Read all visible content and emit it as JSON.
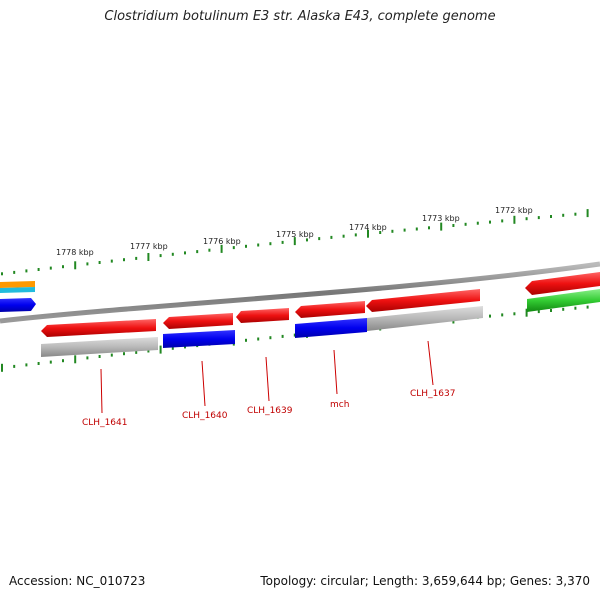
{
  "title": "Clostridium botulinum E3 str. Alaska E43, complete genome",
  "footer": {
    "accession": "Accession: NC_010723",
    "summary": "Topology: circular; Length: 3,659,644 bp; Genes: 3,370"
  },
  "ticks": [
    "1778 kbp",
    "1777 kbp",
    "1776 kbp",
    "1775 kbp",
    "1774 kbp",
    "1773 kbp",
    "1772 kbp"
  ],
  "genes": [
    {
      "name": "CLH_1641"
    },
    {
      "name": "CLH_1640"
    },
    {
      "name": "CLH_1639"
    },
    {
      "name": "mch"
    },
    {
      "name": "CLH_1637"
    }
  ],
  "colors": {
    "red": "#ee1111",
    "blue": "#0000ee",
    "gray": "#b8b8b8",
    "green": "#33cc33",
    "orange": "#ff9900",
    "cyan": "#22bbdd",
    "tick": "#228822",
    "label": "#cc0000"
  }
}
